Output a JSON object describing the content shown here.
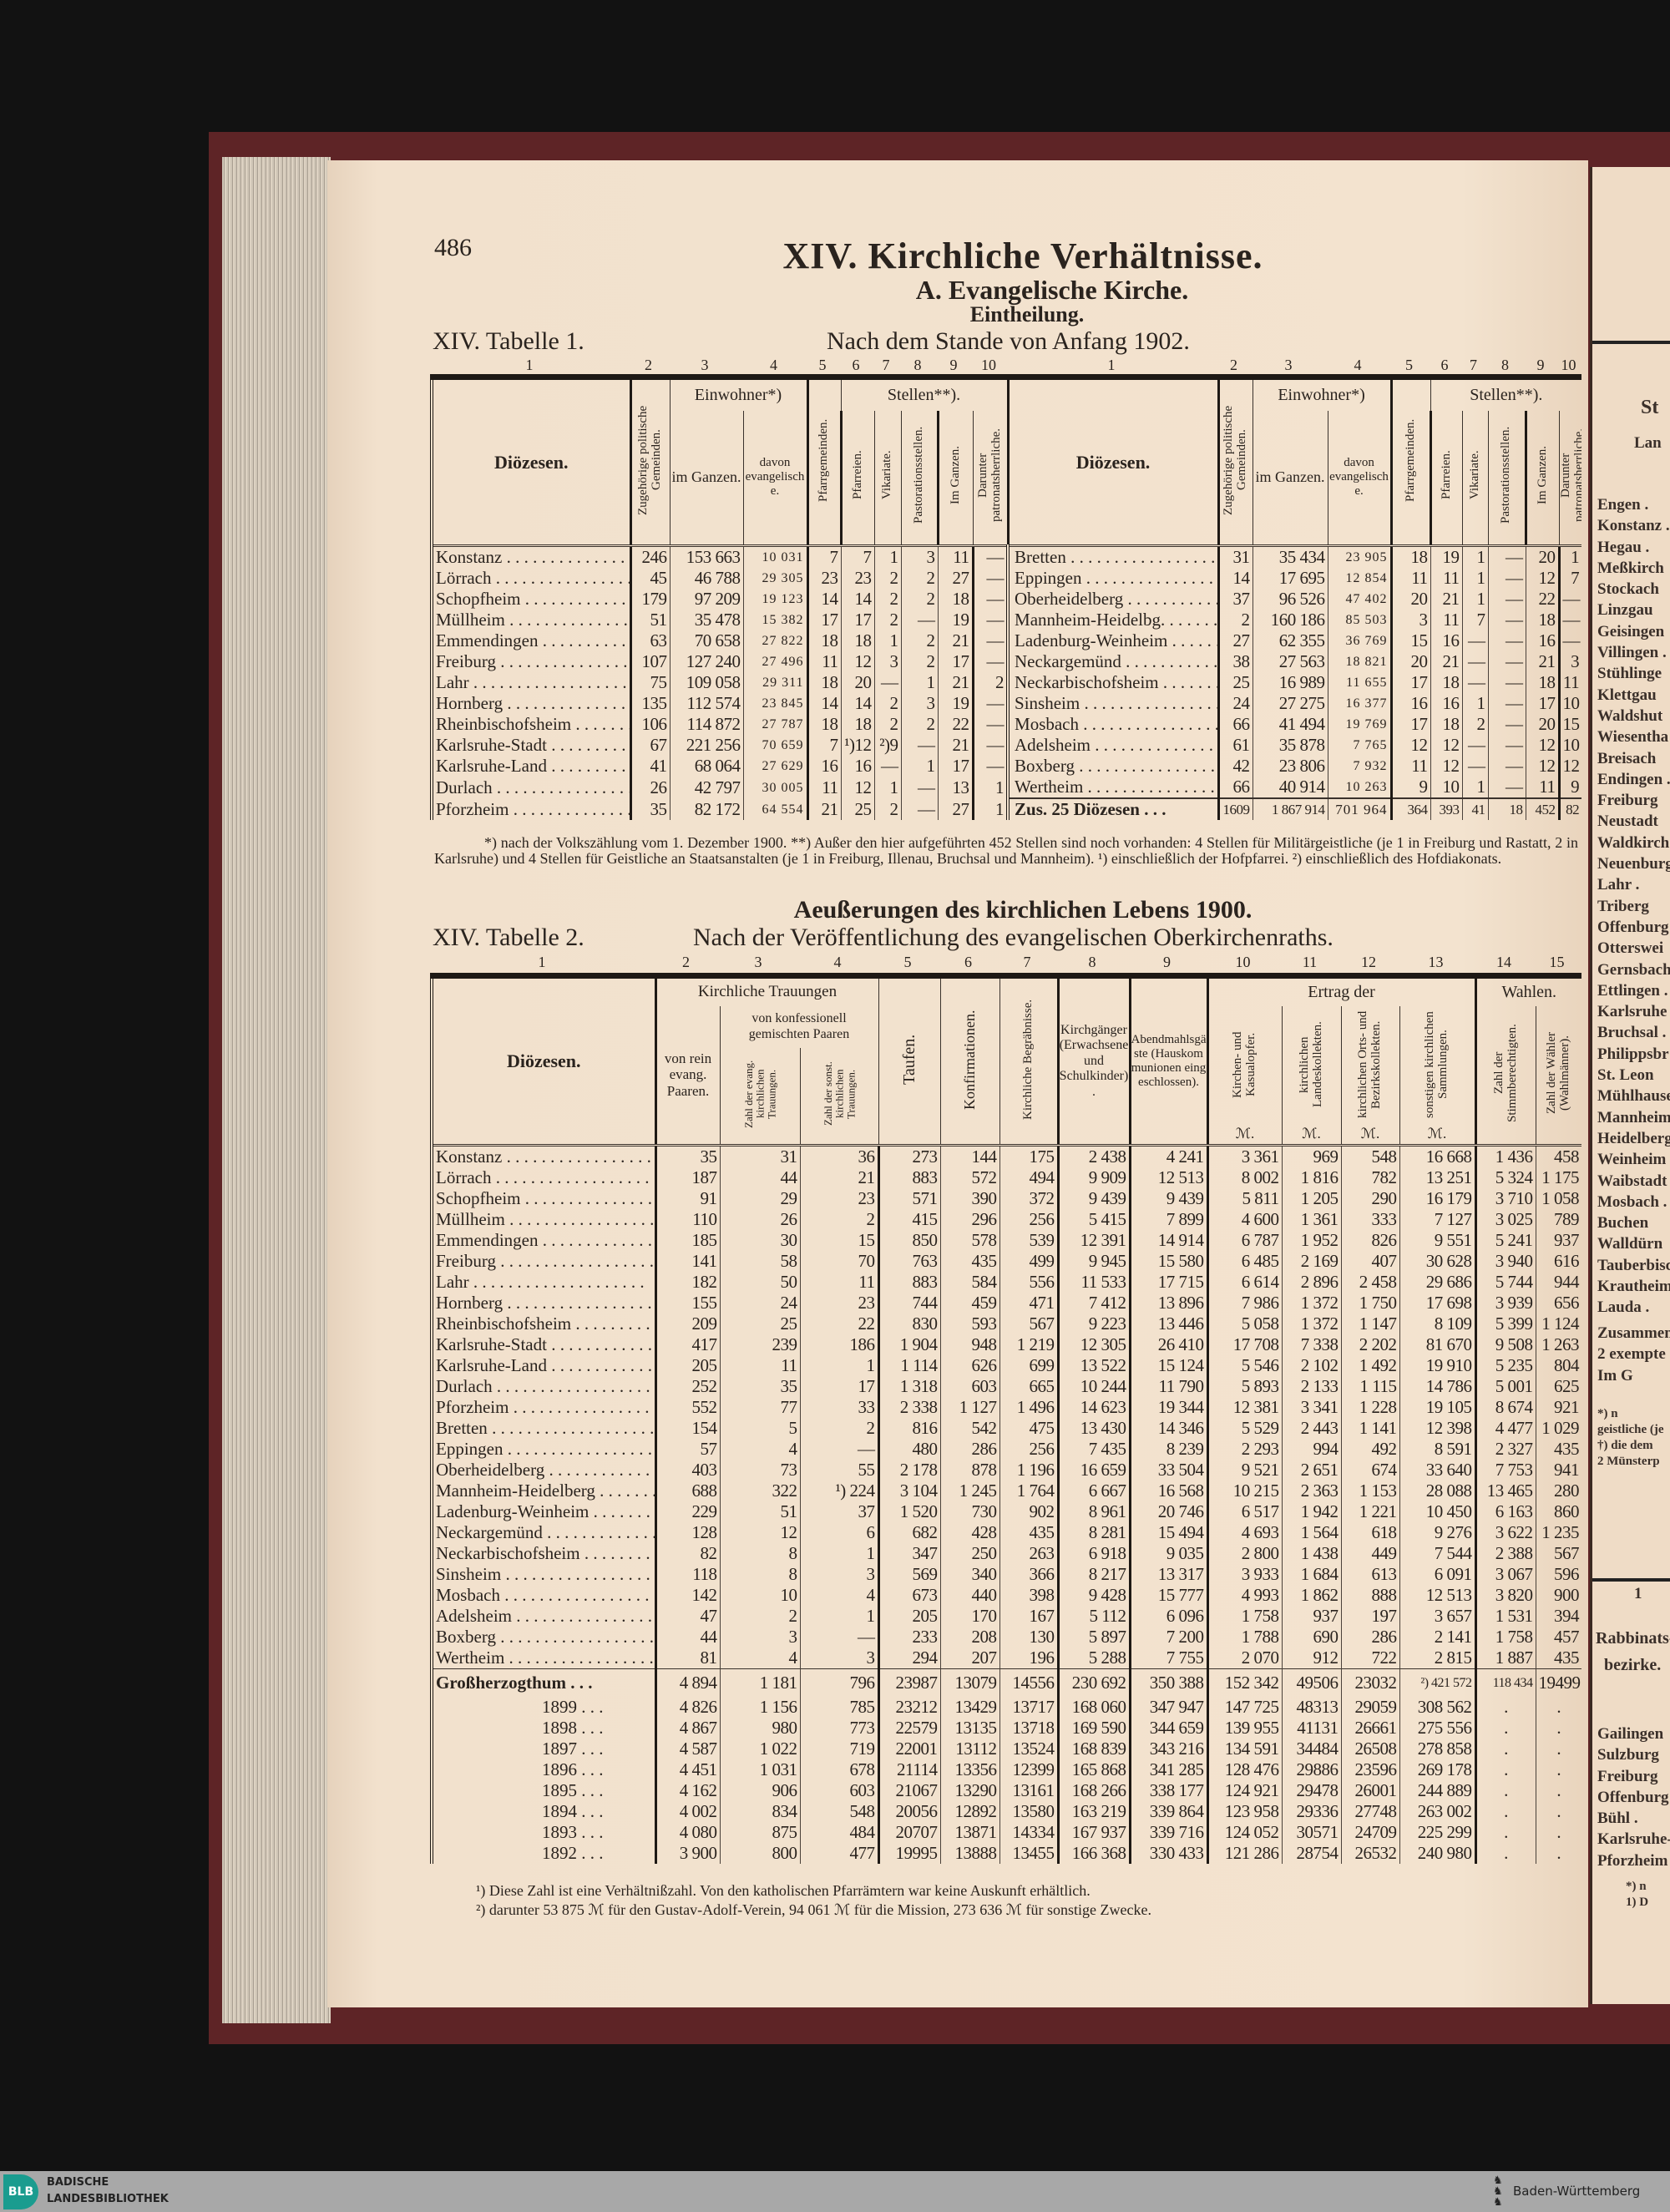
{
  "page": {
    "number": "486",
    "title": "XIV. Kirchliche Verhältnisse.",
    "section": "A. Evangelische Kirche.",
    "subsection": "Eintheilung.",
    "paper_color": "#f3e3cf"
  },
  "table1": {
    "label": "XIV. Tabelle 1.",
    "caption": "Nach dem Stande von Anfang 1902.",
    "col_numbers": [
      "1",
      "2",
      "3",
      "4",
      "5",
      "6",
      "7",
      "8",
      "9",
      "10",
      "1",
      "2",
      "3",
      "4",
      "5",
      "6",
      "7",
      "8",
      "9",
      "10"
    ],
    "headers": {
      "diocese": "Diözesen.",
      "communities": "Zugehörige politische Gemeinden.",
      "inhabitants": "Einwohner*)",
      "total": "im Ganzen.",
      "protestant": "davon evangelische.",
      "parish_communities": "Pfarrgemeinden.",
      "positions": "Stellen**).",
      "parishes": "Pfarreien.",
      "vicariates": "Vikariate.",
      "pastoral": "Pastorationsstellen.",
      "in_total": "Im Ganzen.",
      "patronage": "Darunter patronatsherrliche."
    },
    "left_rows": [
      [
        "Konstanz",
        "246",
        "153 663",
        "10 031",
        "7",
        "7",
        "1",
        "3",
        "11",
        "—"
      ],
      [
        "Lörrach",
        "45",
        "46 788",
        "29 305",
        "23",
        "23",
        "2",
        "2",
        "27",
        "—"
      ],
      [
        "Schopfheim",
        "179",
        "97 209",
        "19 123",
        "14",
        "14",
        "2",
        "2",
        "18",
        "—"
      ],
      [
        "Müllheim",
        "51",
        "35 478",
        "15 382",
        "17",
        "17",
        "2",
        "—",
        "19",
        "—"
      ],
      [
        "Emmendingen",
        "63",
        "70 658",
        "27 822",
        "18",
        "18",
        "1",
        "2",
        "21",
        "—"
      ],
      [
        "Freiburg",
        "107",
        "127 240",
        "27 496",
        "11",
        "12",
        "3",
        "2",
        "17",
        "—"
      ],
      [
        "Lahr",
        "75",
        "109 058",
        "29 311",
        "18",
        "20",
        "—",
        "1",
        "21",
        "2"
      ],
      [
        "Hornberg",
        "135",
        "112 574",
        "23 845",
        "14",
        "14",
        "2",
        "3",
        "19",
        "—"
      ],
      [
        "Rheinbischofsheim",
        "106",
        "114 872",
        "27 787",
        "18",
        "18",
        "2",
        "2",
        "22",
        "—"
      ],
      [
        "Karlsruhe-Stadt",
        "67",
        "221 256",
        "70 659",
        "7",
        "¹)12",
        "²)9",
        "—",
        "21",
        "—"
      ],
      [
        "Karlsruhe-Land",
        "41",
        "68 064",
        "27 629",
        "16",
        "16",
        "—",
        "1",
        "17",
        "—"
      ],
      [
        "Durlach",
        "26",
        "42 797",
        "30 005",
        "11",
        "12",
        "1",
        "—",
        "13",
        "1"
      ],
      [
        "Pforzheim",
        "35",
        "82 172",
        "64 554",
        "21",
        "25",
        "2",
        "—",
        "27",
        "1"
      ]
    ],
    "right_rows": [
      [
        "Bretten",
        "31",
        "35 434",
        "23 905",
        "18",
        "19",
        "1",
        "—",
        "20",
        "1"
      ],
      [
        "Eppingen",
        "14",
        "17 695",
        "12 854",
        "11",
        "11",
        "1",
        "—",
        "12",
        "7"
      ],
      [
        "Oberheidelberg",
        "37",
        "96 526",
        "47 402",
        "20",
        "21",
        "1",
        "—",
        "22",
        "—"
      ],
      [
        "Mannheim-Heidelbg.",
        "2",
        "160 186",
        "85 503",
        "3",
        "11",
        "7",
        "—",
        "18",
        "—"
      ],
      [
        "Ladenburg-Weinheim",
        "27",
        "62 355",
        "36 769",
        "15",
        "16",
        "—",
        "—",
        "16",
        "—"
      ],
      [
        "Neckargemünd",
        "38",
        "27 563",
        "18 821",
        "20",
        "21",
        "—",
        "—",
        "21",
        "3"
      ],
      [
        "Neckarbischofsheim",
        "25",
        "16 989",
        "11 655",
        "17",
        "18",
        "—",
        "—",
        "18",
        "11"
      ],
      [
        "Sinsheim",
        "24",
        "27 275",
        "16 377",
        "16",
        "16",
        "1",
        "—",
        "17",
        "10"
      ],
      [
        "Mosbach",
        "66",
        "41 494",
        "19 769",
        "17",
        "18",
        "2",
        "—",
        "20",
        "15"
      ],
      [
        "Adelsheim",
        "61",
        "35 878",
        "7 765",
        "12",
        "12",
        "—",
        "—",
        "12",
        "10"
      ],
      [
        "Boxberg",
        "42",
        "23 806",
        "7 932",
        "11",
        "12",
        "—",
        "—",
        "12",
        "12"
      ],
      [
        "Wertheim",
        "66",
        "40 914",
        "10 263",
        "9",
        "10",
        "1",
        "—",
        "11",
        "9"
      ],
      [
        "Zus. 25 Diözesen",
        "1609",
        "1 867 914",
        "701 964",
        "364",
        "393",
        "41",
        "18",
        "452",
        "82"
      ]
    ],
    "footnote": "*) nach der Volkszählung vom 1. Dezember 1900.   **) Außer den hier aufgeführten 452 Stellen sind noch vorhanden: 4 Stellen für Militärgeistliche (je 1 in Freiburg und Rastatt, 2 in Karlsruhe) und 4 Stellen für Geistliche an Staatsanstalten (je 1 in Freiburg, Illenau, Bruchsal und Mannheim).   ¹) einschließlich der Hofpfarrei.   ²) einschließlich des Hofdiakonats."
  },
  "table2": {
    "title": "Aeußerungen des kirchlichen Lebens 1900.",
    "label": "XIV. Tabelle 2.",
    "caption": "Nach der Veröffentlichung des evangelischen Oberkirchenraths.",
    "col_numbers": [
      "1",
      "2",
      "3",
      "4",
      "5",
      "6",
      "7",
      "8",
      "9",
      "10",
      "11",
      "12",
      "13",
      "14",
      "15"
    ],
    "headers": {
      "diocese": "Diözesen.",
      "marriages": "Kirchliche Trauungen",
      "pure_protestant": "von rein evang. Paaren.",
      "mixed": "von konfessionell gemischten Paaren",
      "mixed_protestant": "Zahl der evang. kirchlichen Trauungen.",
      "mixed_other": "Zahl der sonst. kirchlichen Trauungen.",
      "baptisms": "Taufen.",
      "confirmations": "Konfirmationen.",
      "burials": "Kirchliche Begräbnisse.",
      "churchgoers": "Kirchgänger (Erwachsene und Schulkinder).",
      "communicants": "Abendmahlsgäste (Hauskommunionen eingeschlossen).",
      "yield": "Ertrag der",
      "church_offerings": "Kirchen- und Kasualopfer.",
      "state_collections": "kirchlichen Landeskollekten.",
      "local_collections": "kirchlichen Orts- und Bezirkskollekten.",
      "other_collections": "sonstigen kirchlichen Sammlungen.",
      "currency": "ℳ.",
      "elections": "Wahlen.",
      "eligible": "Zahl der Stimmberechtigten.",
      "voters": "Zahl der Wähler (Wahlmänner)."
    },
    "rows": [
      [
        "Konstanz",
        "35",
        "31",
        "36",
        "273",
        "144",
        "175",
        "2 438",
        "4 241",
        "3 361",
        "969",
        "548",
        "16 668",
        "1 436",
        "458"
      ],
      [
        "Lörrach",
        "187",
        "44",
        "21",
        "883",
        "572",
        "494",
        "9 909",
        "12 513",
        "8 002",
        "1 816",
        "782",
        "13 251",
        "5 324",
        "1 175"
      ],
      [
        "Schopfheim",
        "91",
        "29",
        "23",
        "571",
        "390",
        "372",
        "9 439",
        "9 439",
        "5 811",
        "1 205",
        "290",
        "16 179",
        "3 710",
        "1 058"
      ],
      [
        "Müllheim",
        "110",
        "26",
        "2",
        "415",
        "296",
        "256",
        "5 415",
        "7 899",
        "4 600",
        "1 361",
        "333",
        "7 127",
        "3 025",
        "789"
      ],
      [
        "Emmendingen",
        "185",
        "30",
        "15",
        "850",
        "578",
        "539",
        "12 391",
        "14 914",
        "6 787",
        "1 952",
        "826",
        "9 551",
        "5 241",
        "937"
      ],
      [
        "Freiburg",
        "141",
        "58",
        "70",
        "763",
        "435",
        "499",
        "9 945",
        "15 580",
        "6 485",
        "2 169",
        "407",
        "30 628",
        "3 940",
        "616"
      ],
      [
        "Lahr",
        "182",
        "50",
        "11",
        "883",
        "584",
        "556",
        "11 533",
        "17 715",
        "6 614",
        "2 896",
        "2 458",
        "29 686",
        "5 744",
        "944"
      ],
      [
        "Hornberg",
        "155",
        "24",
        "23",
        "744",
        "459",
        "471",
        "7 412",
        "13 896",
        "7 986",
        "1 372",
        "1 750",
        "17 698",
        "3 939",
        "656"
      ],
      [
        "Rheinbischofsheim",
        "209",
        "25",
        "22",
        "830",
        "593",
        "567",
        "9 223",
        "13 446",
        "5 058",
        "1 372",
        "1 147",
        "8 109",
        "5 399",
        "1 124"
      ],
      [
        "Karlsruhe-Stadt",
        "417",
        "239",
        "186",
        "1 904",
        "948",
        "1 219",
        "12 305",
        "26 410",
        "17 708",
        "7 338",
        "2 202",
        "81 670",
        "9 508",
        "1 263"
      ],
      [
        "Karlsruhe-Land",
        "205",
        "11",
        "1",
        "1 114",
        "626",
        "699",
        "13 522",
        "15 124",
        "5 546",
        "2 102",
        "1 492",
        "19 910",
        "5 235",
        "804"
      ],
      [
        "Durlach",
        "252",
        "35",
        "17",
        "1 318",
        "603",
        "665",
        "10 244",
        "11 790",
        "5 893",
        "2 133",
        "1 115",
        "14 786",
        "5 001",
        "625"
      ],
      [
        "Pforzheim",
        "552",
        "77",
        "33",
        "2 338",
        "1 127",
        "1 496",
        "14 623",
        "19 344",
        "12 381",
        "3 341",
        "1 228",
        "19 105",
        "8 674",
        "921"
      ],
      [
        "Bretten",
        "154",
        "5",
        "2",
        "816",
        "542",
        "475",
        "13 430",
        "14 346",
        "5 529",
        "2 443",
        "1 141",
        "12 398",
        "4 477",
        "1 029"
      ],
      [
        "Eppingen",
        "57",
        "4",
        "—",
        "480",
        "286",
        "256",
        "7 435",
        "8 239",
        "2 293",
        "994",
        "492",
        "8 591",
        "2 327",
        "435"
      ],
      [
        "Oberheidelberg",
        "403",
        "73",
        "55",
        "2 178",
        "878",
        "1 196",
        "16 659",
        "33 504",
        "9 521",
        "2 651",
        "674",
        "33 640",
        "7 753",
        "941"
      ],
      [
        "Mannheim-Heidelberg",
        "688",
        "322",
        "¹) 224",
        "3 104",
        "1 245",
        "1 764",
        "6 667",
        "16 568",
        "10 215",
        "2 363",
        "1 153",
        "28 088",
        "13 465",
        "280"
      ],
      [
        "Ladenburg-Weinheim",
        "229",
        "51",
        "37",
        "1 520",
        "730",
        "902",
        "8 961",
        "20 746",
        "6 517",
        "1 942",
        "1 221",
        "10 450",
        "6 163",
        "860"
      ],
      [
        "Neckargemünd",
        "128",
        "12",
        "6",
        "682",
        "428",
        "435",
        "8 281",
        "15 494",
        "4 693",
        "1 564",
        "618",
        "9 276",
        "3 622",
        "1 235"
      ],
      [
        "Neckarbischofsheim",
        "82",
        "8",
        "1",
        "347",
        "250",
        "263",
        "6 918",
        "9 035",
        "2 800",
        "1 438",
        "449",
        "7 544",
        "2 388",
        "567"
      ],
      [
        "Sinsheim",
        "118",
        "8",
        "3",
        "569",
        "340",
        "366",
        "8 217",
        "13 317",
        "3 933",
        "1 684",
        "613",
        "6 091",
        "3 067",
        "596"
      ],
      [
        "Mosbach",
        "142",
        "10",
        "4",
        "673",
        "440",
        "398",
        "9 428",
        "15 777",
        "4 993",
        "1 862",
        "888",
        "12 513",
        "3 820",
        "900"
      ],
      [
        "Adelsheim",
        "47",
        "2",
        "1",
        "205",
        "170",
        "167",
        "5 112",
        "6 096",
        "1 758",
        "937",
        "197",
        "3 657",
        "1 531",
        "394"
      ],
      [
        "Boxberg",
        "44",
        "3",
        "—",
        "233",
        "208",
        "130",
        "5 897",
        "7 200",
        "1 788",
        "690",
        "286",
        "2 141",
        "1 758",
        "457"
      ],
      [
        "Wertheim",
        "81",
        "4",
        "3",
        "294",
        "207",
        "196",
        "5 288",
        "7 755",
        "2 070",
        "912",
        "722",
        "2 815",
        "1 887",
        "435"
      ]
    ],
    "totals": [
      [
        "Großherzogthum",
        "4 894",
        "1 181",
        "796",
        "23987",
        "13079",
        "14556",
        "230 692",
        "350 388",
        "152 342",
        "49506",
        "23032",
        "²) 421 572",
        "118 434",
        "19499"
      ],
      [
        "1899",
        "4 826",
        "1 156",
        "785",
        "23212",
        "13429",
        "13717",
        "168 060",
        "347 947",
        "147 725",
        "48313",
        "29059",
        "308 562",
        ".",
        "."
      ],
      [
        "1898",
        "4 867",
        "980",
        "773",
        "22579",
        "13135",
        "13718",
        "169 590",
        "344 659",
        "139 955",
        "41131",
        "26661",
        "275 556",
        ".",
        "."
      ],
      [
        "1897",
        "4 587",
        "1 022",
        "719",
        "22001",
        "13112",
        "13524",
        "168 839",
        "343 216",
        "134 591",
        "34484",
        "26508",
        "278 858",
        ".",
        "."
      ],
      [
        "1896",
        "4 451",
        "1 031",
        "678",
        "21114",
        "13356",
        "12399",
        "165 868",
        "341 285",
        "128 476",
        "29886",
        "23596",
        "269 178",
        ".",
        "."
      ],
      [
        "1895",
        "4 162",
        "906",
        "603",
        "21067",
        "13290",
        "13161",
        "168 266",
        "338 177",
        "124 921",
        "29478",
        "26001",
        "244 889",
        ".",
        "."
      ],
      [
        "1894",
        "4 002",
        "834",
        "548",
        "20056",
        "12892",
        "13580",
        "163 219",
        "339 864",
        "123 958",
        "29336",
        "27748",
        "263 002",
        ".",
        "."
      ],
      [
        "1893",
        "4 080",
        "875",
        "484",
        "20707",
        "13871",
        "14334",
        "167 937",
        "339 716",
        "124 052",
        "30571",
        "24709",
        "225 299",
        ".",
        "."
      ],
      [
        "1892",
        "3 900",
        "800",
        "477",
        "19995",
        "13888",
        "13455",
        "166 368",
        "330 433",
        "121 286",
        "28754",
        "26532",
        "240 980",
        ".",
        "."
      ]
    ],
    "footnotes": [
      "¹) Diese Zahl ist eine Verhältnißzahl. Von den katholischen Pfarrämtern war keine Auskunft erhältlich.",
      "²) darunter 53 875 ℳ für den Gustav-Adolf-Verein, 94 061 ℳ für die Mission, 273 636 ℳ für sonstige Zwecke."
    ]
  },
  "right_page": {
    "heading_1": "St",
    "heading_2": "Lan",
    "list": [
      "Engen .",
      "Konstanz .",
      "Hegau .",
      "Meßkirch",
      "Stockach",
      "Linzgau",
      "Geisingen",
      "Villingen .",
      "Stühlinge",
      "Klettgau",
      "Waldshut",
      "Wiesentha",
      "Breisach",
      "Endingen .",
      "Freiburg",
      "Neustadt",
      "Waldkirch",
      "Neuenburg",
      "Lahr .",
      "Triberg",
      "Offenburg",
      "Otterswei",
      "Gernsbach",
      "Ettlingen .",
      "Karlsruhe",
      "Bruchsal .",
      "Philippsbr",
      "St. Leon",
      "Mühlhause",
      "Mannheim",
      "Heidelberg",
      "Weinheim",
      "Waibstadt",
      "Mosbach .",
      "Buchen",
      "Walldürn",
      "Tauberbisc",
      "Krautheim",
      "Lauda ."
    ],
    "summary": [
      "Zusammen",
      "2 exempte",
      "Im G"
    ],
    "footnotes": [
      "*) n",
      "geistliche (je",
      "†) die dem",
      "2 Münsterp"
    ],
    "col_number": "1",
    "table_heading_1": "Rabbinats-",
    "table_heading_2": "bezirke.",
    "list2": [
      "Gailingen",
      "Sulzburg",
      "Freiburg",
      "Offenburg",
      "Bühl .",
      "Karlsruhe-",
      "Pforzheim"
    ],
    "footnotes2": [
      "*) n",
      "1) D"
    ]
  },
  "footer": {
    "logo": "BLB",
    "library_line1": "BADISCHE",
    "library_line2": "LANDESBIBLIOTHEK",
    "state": "Baden-Württemberg",
    "bar_color": "#a8a8a8",
    "logo_color": "#1a9c8f"
  }
}
